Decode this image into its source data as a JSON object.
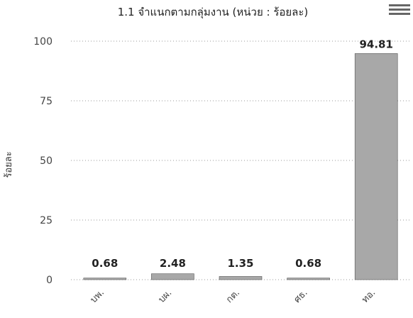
{
  "chart_data": {
    "type": "bar",
    "title": "1.1 จำแนกตามกลุ่มงาน (หน่วย : ร้อยละ)",
    "ylabel": "ร้อยละ",
    "xlabel": "",
    "categories": [
      "บพ.",
      "บผ.",
      "กต.",
      "ศธ.",
      "ทอ."
    ],
    "values": [
      0.68,
      2.48,
      1.35,
      0.68,
      94.81
    ],
    "value_labels": [
      "0.68",
      "2.48",
      "1.35",
      "0.68",
      "94.81"
    ],
    "yticks": [
      0,
      25,
      50,
      75,
      100
    ],
    "ylim": [
      0,
      100
    ],
    "grid": true,
    "legend": "none",
    "bar_color": "#a8a8a8"
  },
  "menu": {
    "icon": "hamburger-menu-icon"
  }
}
